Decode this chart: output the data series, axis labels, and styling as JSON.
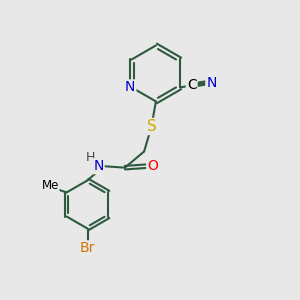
{
  "background_color": "#e8e8e8",
  "bond_color": "#2d5a3d",
  "bond_width": 1.5,
  "atom_colors": {
    "N": "#0000cc",
    "S": "#ccaa00",
    "O": "#ff0000",
    "Br": "#cc7700",
    "C_label": "#000000",
    "H": "#444444"
  },
  "font_size_atom": 10,
  "font_size_small": 9
}
